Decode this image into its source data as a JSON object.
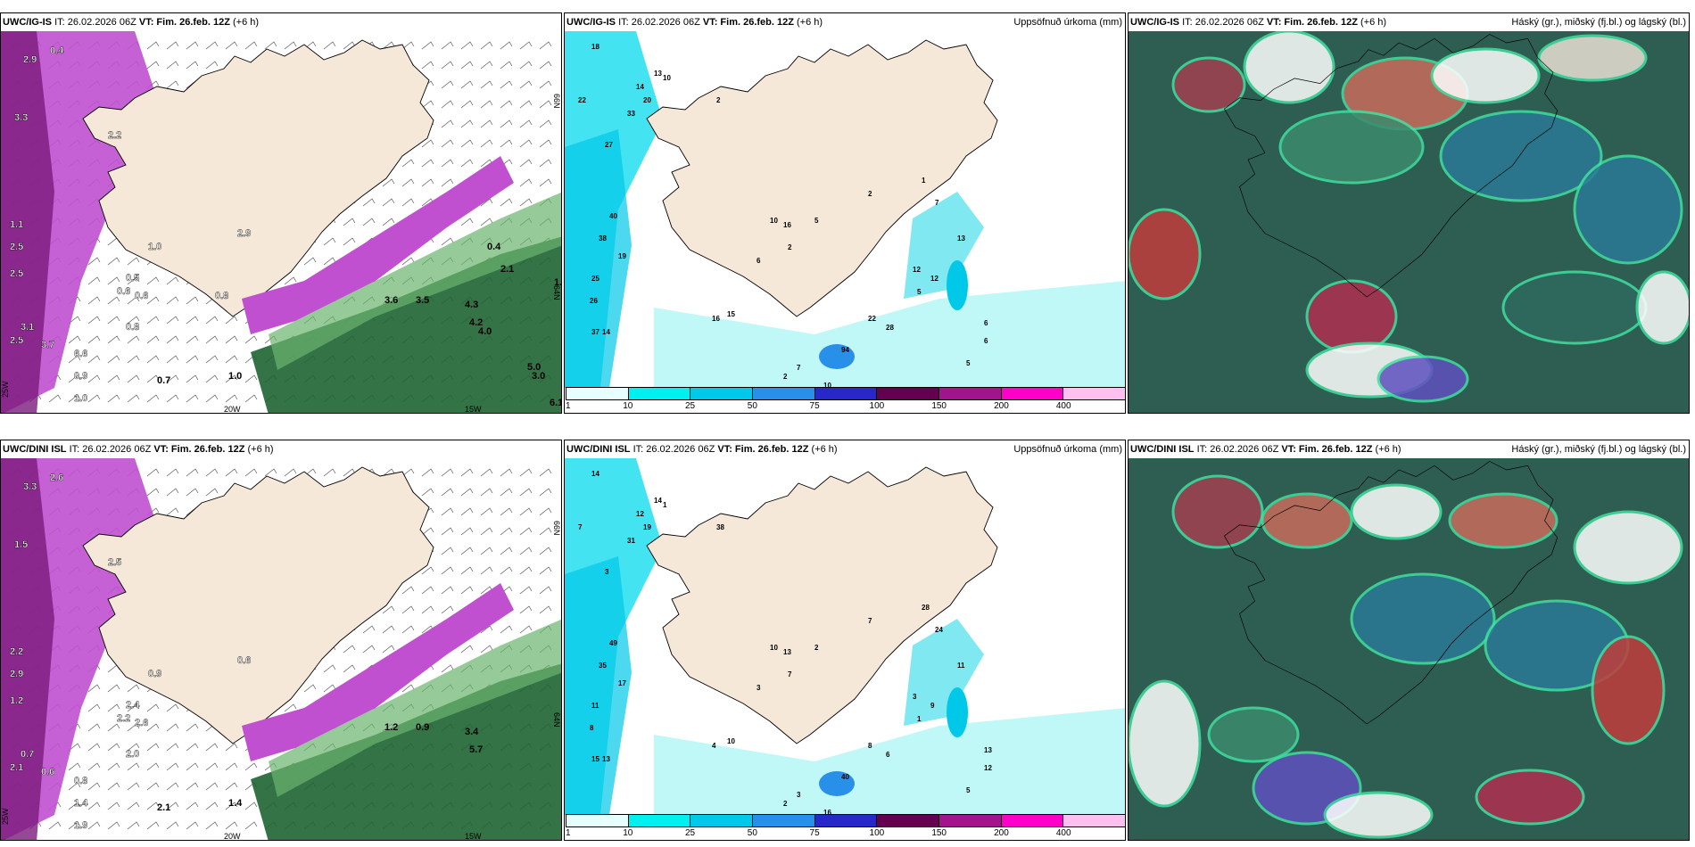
{
  "map": {
    "rows": [
      {
        "model": "UWC/IG-IS",
        "it_label": "IT: 26.02.2026 06Z",
        "vt_label": "VT: Fim. 26.feb. 12Z",
        "lead": "(+6 h)"
      },
      {
        "model": "UWC/DINI ISL",
        "it_label": "IT: 26.02.2026 06Z",
        "vt_label": "VT: Fim. 26.feb. 12Z",
        "lead": "(+6 h)"
      }
    ],
    "precip_title": "Uppsöfnuð úrkoma (mm)",
    "cloud_title": "Háský (gr.), miðský (fj.bl.) og lágský (bl.)",
    "precip_colorbar": {
      "ticks": [
        "1",
        "10",
        "25",
        "50",
        "75",
        "100",
        "150",
        "200",
        "400"
      ],
      "colors": [
        "#e6ffff",
        "#00f0f0",
        "#00c8e8",
        "#2890e8",
        "#2828c8",
        "#640050",
        "#a0148c",
        "#ff00c8",
        "#ffc0f0"
      ]
    },
    "axis_labels": {
      "lon_a": "20W",
      "lon_b": "15W",
      "lat_a": "66N",
      "lat_b": "64N",
      "lon_c": "25W"
    },
    "colors": {
      "land": "#f5e8d8",
      "sea": "#ffffff",
      "snow_magenta": "#c050d0",
      "rain_green": "#1e6432",
      "cloud_dark": "#2e5e52",
      "cloud_red": "#c03c3c"
    },
    "wind_values_top": [
      "2.9",
      "0.4",
      "3.3",
      "2.2",
      "2.5",
      "1.1",
      "2.5",
      "2.5",
      "3.1",
      "3.7",
      "6.6",
      "0.9",
      "1.0",
      "0.7",
      "1.0",
      "0.6",
      "0.5",
      "0.8",
      "0.6",
      "1.0",
      "2.9",
      "3.6",
      "3.5",
      "4.3",
      "4.2",
      "4.0",
      "5.0",
      "3.0",
      "2.1",
      "1.2",
      "6.1",
      "0.8",
      "0.4"
    ],
    "precip_values_top": [
      "18",
      "22",
      "13",
      "14",
      "20",
      "33",
      "27",
      "10",
      "2",
      "40",
      "38",
      "19",
      "25",
      "26",
      "37",
      "14",
      "16",
      "15",
      "10",
      "16",
      "6",
      "5",
      "2",
      "2",
      "1",
      "7",
      "13",
      "12",
      "28",
      "22",
      "12",
      "5",
      "6",
      "6",
      "5",
      "2",
      "7",
      "10",
      "94"
    ],
    "wind_values_bottom": [
      "3.3",
      "2.6",
      "1.5",
      "2.5",
      "1.2",
      "2.2",
      "2.9",
      "2.1",
      "0.7",
      "0.6",
      "0.8",
      "1.4",
      "1.9",
      "2.1",
      "1.4",
      "2.2",
      "2.4",
      "2.0",
      "2.6",
      "0.9",
      "0.6",
      "1.2",
      "0.9",
      "3.4",
      "5.7"
    ],
    "precip_values_bottom": [
      "14",
      "7",
      "14",
      "12",
      "19",
      "31",
      "3",
      "1",
      "38",
      "49",
      "35",
      "17",
      "11",
      "8",
      "15",
      "13",
      "4",
      "10",
      "10",
      "13",
      "3",
      "2",
      "7",
      "7",
      "28",
      "24",
      "11",
      "9",
      "6",
      "8",
      "3",
      "1",
      "13",
      "12",
      "5",
      "2",
      "3",
      "16",
      "40"
    ]
  }
}
